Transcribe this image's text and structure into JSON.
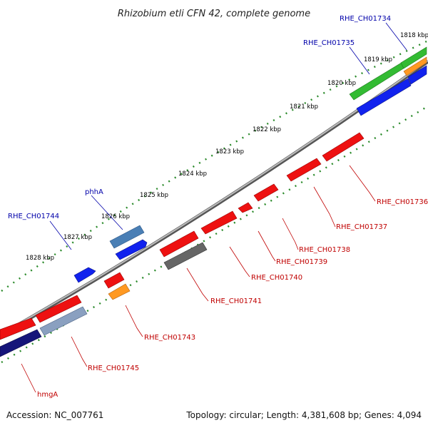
{
  "title": "Rhizobium etli CFN 42, complete genome",
  "footer": {
    "accession": "Accession: NC_007761",
    "summary": "Topology: circular; Length: 4,381,608 bp; Genes: 4,094"
  },
  "kbp_ticks": [
    "1818 kbp",
    "1819 kbp",
    "1820 kbp",
    "1821 kbp",
    "1822 kbp",
    "1823 kbp",
    "1824 kbp",
    "1825 kbp",
    "1826 kbp",
    "1827 kbp",
    "1828 kbp"
  ],
  "colors": {
    "red": "#ee1111",
    "blue": "#1122ee",
    "steel": "#4a7fb5",
    "green": "#33bb33",
    "orange": "#ff9922",
    "gray": "#666666",
    "navy": "#15157a",
    "silver": "#8aa0c0",
    "backbone": "#888888",
    "tick": "#2a8a2a",
    "label_blue": "#0000aa",
    "label_red": "#c00000"
  },
  "gene_labels": {
    "top": [
      "RHE_CH01734",
      "RHE_CH01735",
      "phhA",
      "RHE_CH01744"
    ],
    "bottom": [
      "RHE_CH01736",
      "RHE_CH01737",
      "RHE_CH01738",
      "RHE_CH01739",
      "RHE_CH01740",
      "RHE_CH01741",
      "RHE_CH01743",
      "RHE_CH01745",
      "hmgA"
    ]
  }
}
